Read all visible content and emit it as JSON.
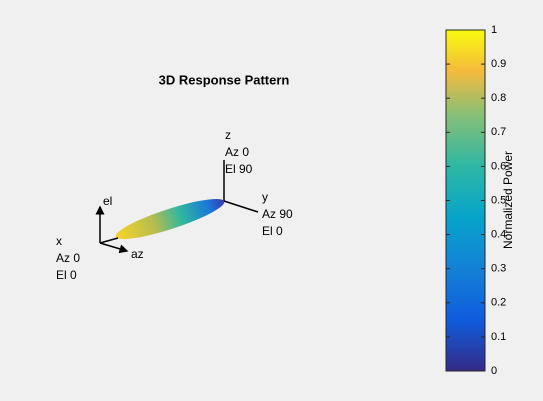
{
  "chart_data": {
    "type": "pattern3d",
    "title": "3D Response Pattern",
    "colorbar": {
      "label": "Normalized Power",
      "lim": [
        0,
        1
      ],
      "ticks": [
        0,
        0.1,
        0.2,
        0.3,
        0.4,
        0.5,
        0.6,
        0.7,
        0.8,
        0.9,
        1
      ]
    },
    "axis_labels": {
      "z": [
        "z",
        "Az 0",
        "El 90"
      ],
      "y": [
        "y",
        "Az 90",
        "El 0"
      ],
      "x": [
        "x",
        "Az 0",
        "El 0"
      ],
      "el": "el",
      "az": "az"
    }
  }
}
